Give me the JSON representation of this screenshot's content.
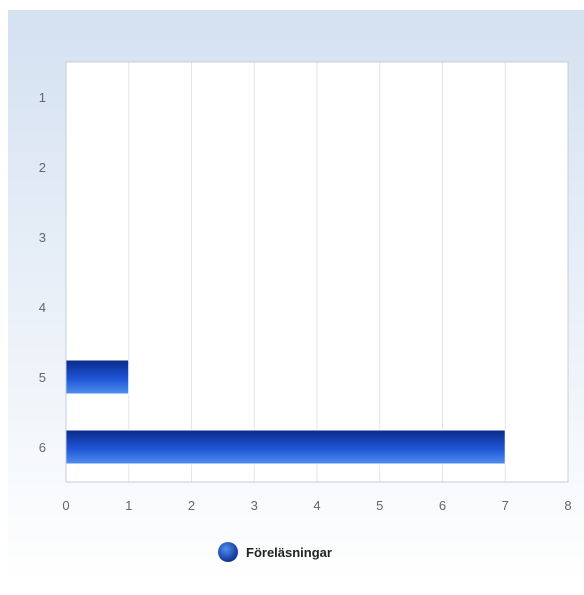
{
  "chart_data": {
    "type": "bar",
    "orientation": "horizontal",
    "categories": [
      "1",
      "2",
      "3",
      "4",
      "5",
      "6"
    ],
    "series": [
      {
        "name": "Föreläsningar",
        "values": [
          0,
          0,
          0,
          0,
          1,
          7
        ]
      }
    ],
    "title": "",
    "xlabel": "",
    "ylabel": "",
    "xlim": [
      0,
      8
    ],
    "xticks": [
      "0",
      "1",
      "2",
      "3",
      "4",
      "5",
      "6",
      "7",
      "8"
    ],
    "grid": true,
    "legend_position": "bottom",
    "colors": {
      "background_top": "#d4e1f1",
      "background_bottom": "#ffffff",
      "bar_dark": "#0a2a8a",
      "bar_mid": "#1f55d6",
      "bar_light": "#4f8ff0",
      "grid": "#e2e6ec",
      "axis": "#c7ccd4"
    }
  }
}
